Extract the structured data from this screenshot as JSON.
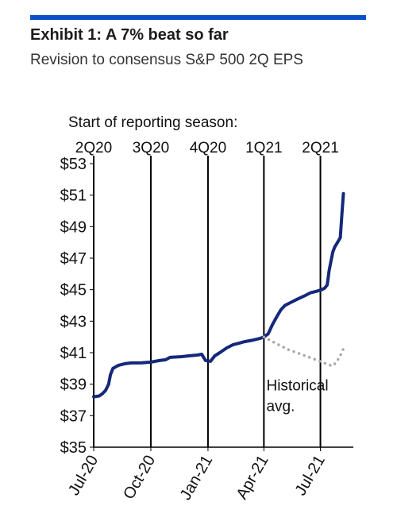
{
  "header": {
    "title": "Exhibit 1: A 7% beat so far",
    "subtitle": "Revision to consensus S&P 500 2Q EPS"
  },
  "chart_data": {
    "type": "line",
    "title": "Exhibit 1: A 7% beat so far",
    "subtitle": "Revision to consensus S&P 500 2Q EPS",
    "xlabel": "",
    "ylabel": "",
    "ylim": [
      35,
      53
    ],
    "xlim": [
      "2020-07-01",
      "2021-08-23"
    ],
    "y_ticks": [
      "$53",
      "$51",
      "$49",
      "$47",
      "$45",
      "$43",
      "$41",
      "$39",
      "$37",
      "$35"
    ],
    "y_tick_values": [
      53,
      51,
      49,
      47,
      45,
      43,
      41,
      39,
      37,
      35
    ],
    "x_ticks": [
      {
        "label": "Jul-20",
        "date": "2020-07-01"
      },
      {
        "label": "Oct-20",
        "date": "2020-10-01"
      },
      {
        "label": "Jan-21",
        "date": "2021-01-01"
      },
      {
        "label": "Apr-21",
        "date": "2021-04-01"
      },
      {
        "label": "Jul-21",
        "date": "2021-07-01"
      }
    ],
    "reporting_season": {
      "label": "Start of reporting  season:",
      "markers": [
        {
          "label": "2Q20",
          "date": "2020-07-01"
        },
        {
          "label": "3Q20",
          "date": "2020-10-01"
        },
        {
          "label": "4Q20",
          "date": "2021-01-01"
        },
        {
          "label": "1Q21",
          "date": "2021-04-01"
        },
        {
          "label": "2Q21",
          "date": "2021-07-01"
        }
      ]
    },
    "series": [
      {
        "name": "",
        "style": "solid",
        "color": "#15287a",
        "points": [
          [
            "2020-07-01",
            38.2
          ],
          [
            "2020-07-10",
            38.25
          ],
          [
            "2020-07-15",
            38.4
          ],
          [
            "2020-07-20",
            38.6
          ],
          [
            "2020-07-25",
            39.0
          ],
          [
            "2020-07-28",
            39.6
          ],
          [
            "2020-08-01",
            40.0
          ],
          [
            "2020-08-10",
            40.2
          ],
          [
            "2020-08-20",
            40.3
          ],
          [
            "2020-08-31",
            40.35
          ],
          [
            "2020-09-15",
            40.35
          ],
          [
            "2020-10-01",
            40.4
          ],
          [
            "2020-10-15",
            40.5
          ],
          [
            "2020-10-25",
            40.55
          ],
          [
            "2020-11-01",
            40.7
          ],
          [
            "2020-11-20",
            40.75
          ],
          [
            "2020-12-01",
            40.8
          ],
          [
            "2020-12-15",
            40.85
          ],
          [
            "2020-12-22",
            40.9
          ],
          [
            "2020-12-28",
            40.5
          ],
          [
            "2021-01-05",
            40.45
          ],
          [
            "2021-01-12",
            40.8
          ],
          [
            "2021-01-20",
            41.0
          ],
          [
            "2021-01-31",
            41.3
          ],
          [
            "2021-02-10",
            41.5
          ],
          [
            "2021-02-20",
            41.6
          ],
          [
            "2021-03-01",
            41.7
          ],
          [
            "2021-03-15",
            41.8
          ],
          [
            "2021-03-25",
            41.9
          ],
          [
            "2021-04-01",
            42.0
          ],
          [
            "2021-04-08",
            42.2
          ],
          [
            "2021-04-15",
            42.8
          ],
          [
            "2021-04-22",
            43.3
          ],
          [
            "2021-04-28",
            43.7
          ],
          [
            "2021-05-05",
            44.0
          ],
          [
            "2021-05-15",
            44.2
          ],
          [
            "2021-05-25",
            44.4
          ],
          [
            "2021-06-05",
            44.6
          ],
          [
            "2021-06-15",
            44.8
          ],
          [
            "2021-06-25",
            44.9
          ],
          [
            "2021-07-03",
            45.0
          ],
          [
            "2021-07-08",
            45.1
          ],
          [
            "2021-07-12",
            45.3
          ],
          [
            "2021-07-15",
            46.2
          ],
          [
            "2021-07-18",
            46.8
          ],
          [
            "2021-07-21",
            47.4
          ],
          [
            "2021-07-24",
            47.7
          ],
          [
            "2021-07-27",
            47.9
          ],
          [
            "2021-07-30",
            48.1
          ],
          [
            "2021-08-02",
            48.3
          ],
          [
            "2021-08-05",
            50.0
          ],
          [
            "2021-08-07",
            51.1
          ]
        ]
      },
      {
        "name": "Historical avg.",
        "style": "dotted",
        "color": "#a8a8a8",
        "points": [
          [
            "2021-04-01",
            42.0
          ],
          [
            "2021-04-20",
            41.6
          ],
          [
            "2021-05-10",
            41.2
          ],
          [
            "2021-05-31",
            40.9
          ],
          [
            "2021-06-20",
            40.6
          ],
          [
            "2021-07-10",
            40.3
          ],
          [
            "2021-07-20",
            40.15
          ],
          [
            "2021-07-27",
            40.4
          ],
          [
            "2021-08-03",
            40.9
          ],
          [
            "2021-08-10",
            41.5
          ]
        ]
      }
    ],
    "annotations": [
      {
        "text": "Historical",
        "date": "2021-04-05",
        "y": 38.6
      },
      {
        "text": "avg.",
        "date": "2021-04-05",
        "y": 37.3
      }
    ],
    "grid": false,
    "legend": "none"
  }
}
